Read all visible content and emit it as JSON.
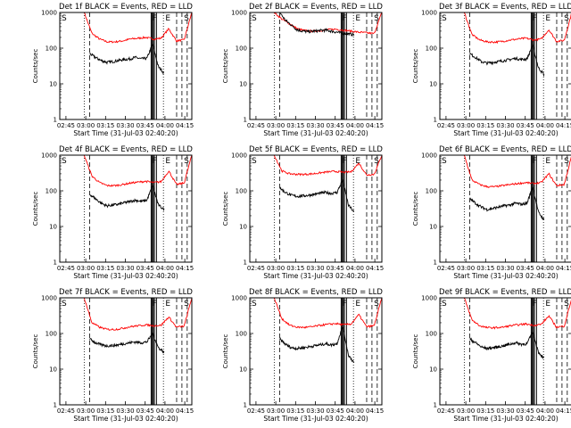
{
  "chart_data": {
    "type": "line",
    "title_template": "Det {n}f BLACK = Events, RED = LLD",
    "detectors": [
      "1",
      "2",
      "3",
      "4",
      "5",
      "6",
      "7",
      "8",
      "9"
    ],
    "ylabel": "Counts/sec",
    "xlabel": "Start Time (31-Jul-03 02:40:20)",
    "yscale": "log",
    "ylim": [
      1,
      1000
    ],
    "yticks": [
      1,
      10,
      100,
      1000
    ],
    "ytick_labels": [
      "1",
      "10",
      "100",
      "1000"
    ],
    "xlim_minutes": [
      0,
      100
    ],
    "xticks_minutes": [
      4.67,
      19.67,
      34.67,
      49.67,
      64.67,
      79.67,
      94.67
    ],
    "xtick_labels": [
      "02:45",
      "03:00",
      "03:15",
      "03:30",
      "03:45",
      "04:00",
      "04:15"
    ],
    "markers": {
      "start": "S",
      "flare": "F",
      "end": "E"
    },
    "vlines_minutes": {
      "dotted": [
        18.5,
        78.5
      ],
      "dashed": [
        22.7,
        88.5,
        92.5,
        96.5
      ],
      "solid": [
        69.2,
        70.0,
        70.8,
        71.6,
        73.2
      ]
    },
    "series": [
      {
        "name": "Events",
        "color": "#000000"
      },
      {
        "name": "LLD",
        "color": "#ff0000"
      }
    ],
    "panels": [
      {
        "det": "1",
        "events": [
          70,
          55,
          45,
          40,
          42,
          45,
          48,
          50,
          55,
          50,
          52,
          130,
          30,
          20
        ],
        "lld": [
          1000,
          260,
          180,
          150,
          150,
          160,
          180,
          190,
          200,
          180,
          190,
          350,
          160,
          170,
          1000
        ]
      },
      {
        "det": "2",
        "events": [
          1000,
          600,
          450,
          330,
          300,
          290,
          300,
          310,
          320,
          300,
          280,
          260,
          250,
          240
        ],
        "lld": [
          1000,
          650,
          480,
          350,
          310,
          300,
          310,
          330,
          340,
          320,
          300,
          280,
          270,
          255,
          1000
        ]
      },
      {
        "det": "3",
        "events": [
          70,
          55,
          42,
          38,
          40,
          42,
          45,
          48,
          52,
          48,
          50,
          120,
          28,
          18
        ],
        "lld": [
          1000,
          240,
          170,
          150,
          148,
          155,
          170,
          180,
          190,
          170,
          180,
          330,
          155,
          165,
          1000
        ]
      },
      {
        "det": "4",
        "events": [
          80,
          60,
          45,
          38,
          40,
          42,
          46,
          50,
          55,
          50,
          55,
          140,
          40,
          30
        ],
        "lld": [
          1000,
          260,
          170,
          140,
          140,
          150,
          165,
          175,
          185,
          170,
          180,
          360,
          150,
          165,
          1000
        ]
      },
      {
        "det": "5",
        "events": [
          120,
          90,
          75,
          70,
          72,
          75,
          80,
          85,
          90,
          85,
          90,
          200,
          40,
          25
        ],
        "lld": [
          1000,
          360,
          300,
          290,
          290,
          300,
          320,
          340,
          350,
          330,
          340,
          600,
          280,
          290,
          1000
        ]
      },
      {
        "det": "6",
        "events": [
          60,
          45,
          35,
          30,
          32,
          35,
          38,
          40,
          45,
          42,
          45,
          130,
          25,
          15
        ],
        "lld": [
          1000,
          200,
          150,
          130,
          130,
          140,
          150,
          160,
          170,
          160,
          170,
          300,
          140,
          150,
          1000
        ]
      },
      {
        "det": "7",
        "events": [
          70,
          55,
          48,
          45,
          46,
          48,
          52,
          55,
          58,
          55,
          58,
          100,
          40,
          30
        ],
        "lld": [
          1000,
          200,
          150,
          130,
          130,
          140,
          155,
          165,
          175,
          165,
          170,
          290,
          150,
          160,
          1000
        ]
      },
      {
        "det": "8",
        "events": [
          70,
          50,
          40,
          38,
          40,
          42,
          45,
          48,
          52,
          48,
          52,
          160,
          25,
          15
        ],
        "lld": [
          1000,
          260,
          170,
          150,
          148,
          155,
          170,
          180,
          190,
          175,
          185,
          340,
          155,
          165,
          1000
        ]
      },
      {
        "det": "9",
        "events": [
          70,
          55,
          42,
          38,
          40,
          42,
          46,
          50,
          55,
          50,
          52,
          110,
          30,
          20
        ],
        "lld": [
          1000,
          240,
          165,
          145,
          145,
          150,
          165,
          175,
          185,
          170,
          180,
          310,
          150,
          160,
          1000
        ]
      }
    ]
  }
}
